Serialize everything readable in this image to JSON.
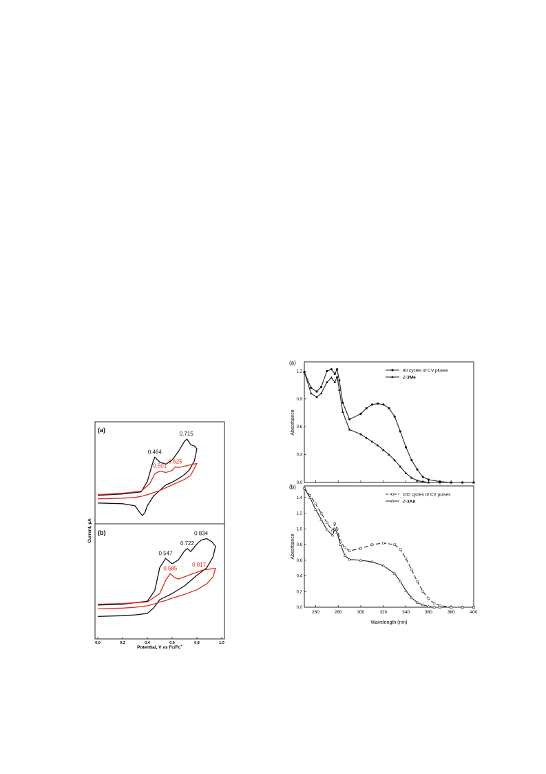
{
  "colors": {
    "black": "#111111",
    "red": "#e0281e"
  },
  "chart_data": [
    {
      "type": "line",
      "panels": [
        {
          "label": "(a)",
          "annotations": [
            {
              "text": "0.464",
              "x": 0.46,
              "color": "black"
            },
            {
              "text": "0.715",
              "x": 0.715,
              "color": "black"
            },
            {
              "text": "0.501",
              "x": 0.501,
              "color": "red"
            },
            {
              "text": "0.625",
              "x": 0.625,
              "color": "red"
            }
          ],
          "series": [
            {
              "color": "black",
              "x": [
                0.0,
                0.2,
                0.35,
                0.4,
                0.44,
                0.46,
                0.5,
                0.55,
                0.6,
                0.65,
                0.7,
                0.72,
                0.75,
                0.78,
                0.8,
                0.78,
                0.74,
                0.7,
                0.65,
                0.6,
                0.55,
                0.5,
                0.45,
                0.4,
                0.38,
                0.36,
                0.34,
                0.3,
                0.2,
                0.0
              ],
              "y": [
                3.5,
                3.7,
                4.0,
                5.5,
                8.0,
                9.0,
                8.3,
                8.0,
                8.6,
                9.8,
                11.3,
                11.6,
                10.8,
                10.6,
                10.2,
                8.5,
                7.2,
                6.5,
                5.9,
                5.4,
                5.0,
                4.2,
                3.4,
                2.0,
                1.0,
                0.6,
                1.0,
                2.0,
                2.3,
                2.4
              ]
            },
            {
              "color": "red",
              "x": [
                0.0,
                0.2,
                0.35,
                0.42,
                0.46,
                0.5,
                0.55,
                0.6,
                0.625,
                0.65,
                0.7,
                0.75,
                0.8,
                0.75,
                0.7,
                0.6,
                0.5,
                0.45,
                0.4,
                0.36,
                0.3,
                0.2,
                0.0
              ],
              "y": [
                3.6,
                3.8,
                4.1,
                5.2,
                6.6,
                7.0,
                6.8,
                7.1,
                7.6,
                7.5,
                7.7,
                7.9,
                8.1,
                6.4,
                5.8,
                5.0,
                4.2,
                3.9,
                3.6,
                3.4,
                3.2,
                3.1,
                3.0
              ]
            }
          ]
        },
        {
          "label": "(b)",
          "annotations": [
            {
              "text": "0.547",
              "x": 0.547,
              "color": "black"
            },
            {
              "text": "0.722",
              "x": 0.722,
              "color": "black"
            },
            {
              "text": "0.834",
              "x": 0.834,
              "color": "black"
            },
            {
              "text": "0.585",
              "x": 0.585,
              "color": "red"
            },
            {
              "text": "0.817",
              "x": 0.817,
              "color": "red"
            }
          ],
          "series": [
            {
              "color": "black",
              "x": [
                0.0,
                0.2,
                0.4,
                0.46,
                0.5,
                0.547,
                0.6,
                0.65,
                0.7,
                0.722,
                0.75,
                0.8,
                0.834,
                0.88,
                0.92,
                0.95,
                0.93,
                0.88,
                0.8,
                0.7,
                0.6,
                0.5,
                0.45,
                0.4,
                0.3,
                0.2,
                0.0
              ],
              "y": [
                3.9,
                4.0,
                4.4,
                5.8,
                8.8,
                10.0,
                9.3,
                9.8,
                11.0,
                11.3,
                10.9,
                11.9,
                12.4,
                12.6,
                12.2,
                11.6,
                10.2,
                8.8,
                7.8,
                6.4,
                5.4,
                4.6,
                3.5,
                2.8,
                2.6,
                2.5,
                2.4
              ]
            },
            {
              "color": "red",
              "x": [
                0.0,
                0.2,
                0.4,
                0.5,
                0.55,
                0.585,
                0.62,
                0.65,
                0.7,
                0.75,
                0.8,
                0.817,
                0.85,
                0.9,
                0.95,
                0.93,
                0.88,
                0.8,
                0.7,
                0.6,
                0.55,
                0.5,
                0.45,
                0.4,
                0.3,
                0.2,
                0.0
              ],
              "y": [
                4.0,
                4.1,
                4.3,
                5.4,
                7.2,
                8.0,
                7.5,
                7.3,
                7.6,
                7.9,
                8.2,
                8.3,
                8.5,
                8.6,
                8.7,
                7.6,
                6.7,
                5.9,
                5.3,
                4.8,
                4.5,
                4.3,
                4.0,
                3.8,
                3.6,
                3.5,
                3.4
              ]
            }
          ]
        }
      ],
      "xlabel": "Potential, V vs Fc/Fc",
      "xlabel_sup": "+",
      "ylabel": "Current, µA",
      "xlim": [
        0.0,
        1.0
      ],
      "xticks": [
        "0.0",
        "0.2",
        "0.4",
        "0.6",
        "0.8",
        "1.0"
      ],
      "grid": false
    },
    {
      "type": "line",
      "panels": [
        {
          "label": "(a)",
          "ylim": [
            0.0,
            1.3
          ],
          "yticks": [
            "0.0",
            "0.3",
            "0.6",
            "0.9",
            "1.2"
          ],
          "legend_position": "top-right",
          "series": [
            {
              "name": "80 cycles of CV pluses",
              "marker": "filled-circle",
              "dash": "solid",
              "x": [
                250,
                256,
                261,
                265,
                270,
                274,
                277,
                279,
                281,
                284,
                290,
                300,
                305,
                310,
                315,
                320,
                325,
                330,
                335,
                340,
                345,
                350,
                355,
                360,
                370,
                380,
                390,
                400
              ],
              "y": [
                1.19,
                1.02,
                0.98,
                1.03,
                1.2,
                1.22,
                1.17,
                1.22,
                1.1,
                0.86,
                0.68,
                0.74,
                0.8,
                0.84,
                0.85,
                0.84,
                0.8,
                0.71,
                0.55,
                0.38,
                0.24,
                0.14,
                0.06,
                0.03,
                0.01,
                0.0,
                0.0,
                0.0
              ]
            },
            {
              "name": "Z-3Me",
              "name_italic": "Z",
              "name_bold": "3Me",
              "marker": "filled-triangle",
              "dash": "solid",
              "x": [
                250,
                256,
                261,
                265,
                270,
                274,
                277,
                279,
                281,
                284,
                290,
                300,
                305,
                310,
                315,
                320,
                325,
                330,
                335,
                340,
                345,
                350,
                355,
                360,
                370,
                380,
                390,
                400
              ],
              "y": [
                1.19,
                0.96,
                0.92,
                0.96,
                1.08,
                1.13,
                1.08,
                1.14,
                1.0,
                0.76,
                0.57,
                0.52,
                0.48,
                0.44,
                0.4,
                0.35,
                0.3,
                0.24,
                0.17,
                0.1,
                0.05,
                0.02,
                0.01,
                0.0,
                0.0,
                0.0,
                0.0,
                0.0
              ]
            }
          ]
        },
        {
          "label": "(b)",
          "ylim": [
            0.0,
            1.55
          ],
          "yticks": [
            "0.0",
            "0.2",
            "0.4",
            "0.6",
            "0.8",
            "1.0",
            "1.2",
            "1.4"
          ],
          "legend_position": "top-right",
          "series": [
            {
              "name": "100 cycles of CV pulses",
              "marker": "open-square",
              "dash": "dashed",
              "x": [
                250,
                255,
                260,
                265,
                270,
                275,
                277,
                279,
                282,
                286,
                290,
                300,
                310,
                320,
                330,
                335,
                340,
                345,
                350,
                355,
                360,
                365,
                370,
                380,
                390,
                400
              ],
              "y": [
                1.52,
                1.43,
                1.32,
                1.2,
                1.08,
                0.98,
                1.07,
                1.0,
                0.84,
                0.76,
                0.72,
                0.75,
                0.8,
                0.82,
                0.8,
                0.74,
                0.62,
                0.48,
                0.33,
                0.2,
                0.11,
                0.05,
                0.02,
                0.0,
                0.0,
                0.0
              ]
            },
            {
              "name": "Z-3An",
              "name_italic": "Z",
              "name_bold": "3An",
              "marker": "open-triangle",
              "dash": "solid",
              "x": [
                250,
                255,
                260,
                265,
                270,
                275,
                277,
                279,
                282,
                286,
                290,
                300,
                310,
                320,
                330,
                335,
                340,
                345,
                350,
                355,
                360,
                365,
                370,
                380,
                390,
                400
              ],
              "y": [
                1.52,
                1.4,
                1.25,
                1.12,
                0.99,
                0.92,
                1.0,
                0.95,
                0.8,
                0.66,
                0.61,
                0.6,
                0.58,
                0.53,
                0.43,
                0.33,
                0.21,
                0.12,
                0.06,
                0.03,
                0.01,
                0.0,
                0.0,
                0.0,
                0.0,
                0.0
              ]
            }
          ]
        }
      ],
      "xlabel": "Wavelength (nm)",
      "ylabel": "Absorbance",
      "xlim": [
        250,
        400
      ],
      "xticks": [
        "260",
        "280",
        "300",
        "320",
        "340",
        "360",
        "380",
        "400"
      ],
      "grid": false
    }
  ]
}
